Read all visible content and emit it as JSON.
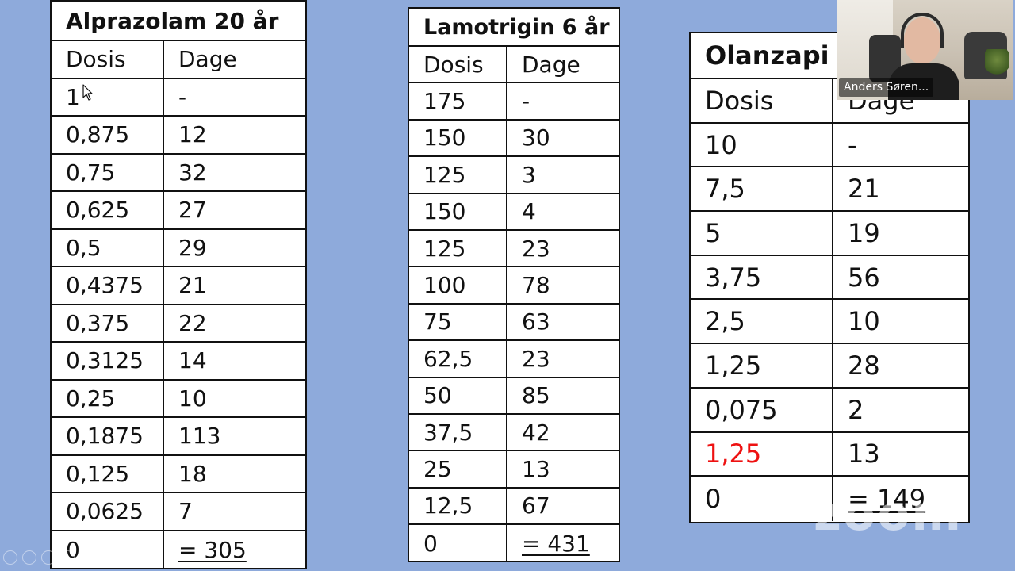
{
  "tables": [
    {
      "title": "Alprazolam 20 år",
      "col1": "Dosis",
      "col2": "Dage",
      "rows": [
        [
          "1",
          "-"
        ],
        [
          "0,875",
          "12"
        ],
        [
          "0,75",
          "32"
        ],
        [
          "0,625",
          "27"
        ],
        [
          "0,5",
          "29"
        ],
        [
          "0,4375",
          "21"
        ],
        [
          "0,375",
          "22"
        ],
        [
          "0,3125",
          "14"
        ],
        [
          "0,25",
          "10"
        ],
        [
          "0,1875",
          "113"
        ],
        [
          "0,125",
          "18"
        ],
        [
          "0,0625",
          "7"
        ],
        [
          "0",
          "= 305"
        ]
      ]
    },
    {
      "title": "Lamotrigin 6 år",
      "col1": "Dosis",
      "col2": "Dage",
      "rows": [
        [
          "175",
          "-"
        ],
        [
          "150",
          "30"
        ],
        [
          "125",
          "3"
        ],
        [
          "150",
          "4"
        ],
        [
          "125",
          "23"
        ],
        [
          "100",
          "78"
        ],
        [
          "75",
          "63"
        ],
        [
          "62,5",
          "23"
        ],
        [
          "50",
          "85"
        ],
        [
          "37,5",
          "42"
        ],
        [
          "25",
          "13"
        ],
        [
          "12,5",
          "67"
        ],
        [
          "0",
          "= 431"
        ]
      ]
    },
    {
      "title": "Olanzapi",
      "col1": "Dosis",
      "col2": "Dage",
      "rows": [
        [
          "10",
          "-"
        ],
        [
          "7,5",
          "21"
        ],
        [
          "5",
          "19"
        ],
        [
          "3,75",
          "56"
        ],
        [
          "2,5",
          "10"
        ],
        [
          "1,25",
          "28"
        ],
        [
          "0,075",
          "2"
        ],
        [
          "1,25",
          "13"
        ],
        [
          "0",
          "= 149"
        ]
      ]
    }
  ],
  "highlight_color": "#ee1111",
  "participant": {
    "name": "Anders Søren..."
  },
  "watermark": "zoom",
  "icons": [
    "mouse-pointer-icon",
    "meeting-control-icon"
  ]
}
